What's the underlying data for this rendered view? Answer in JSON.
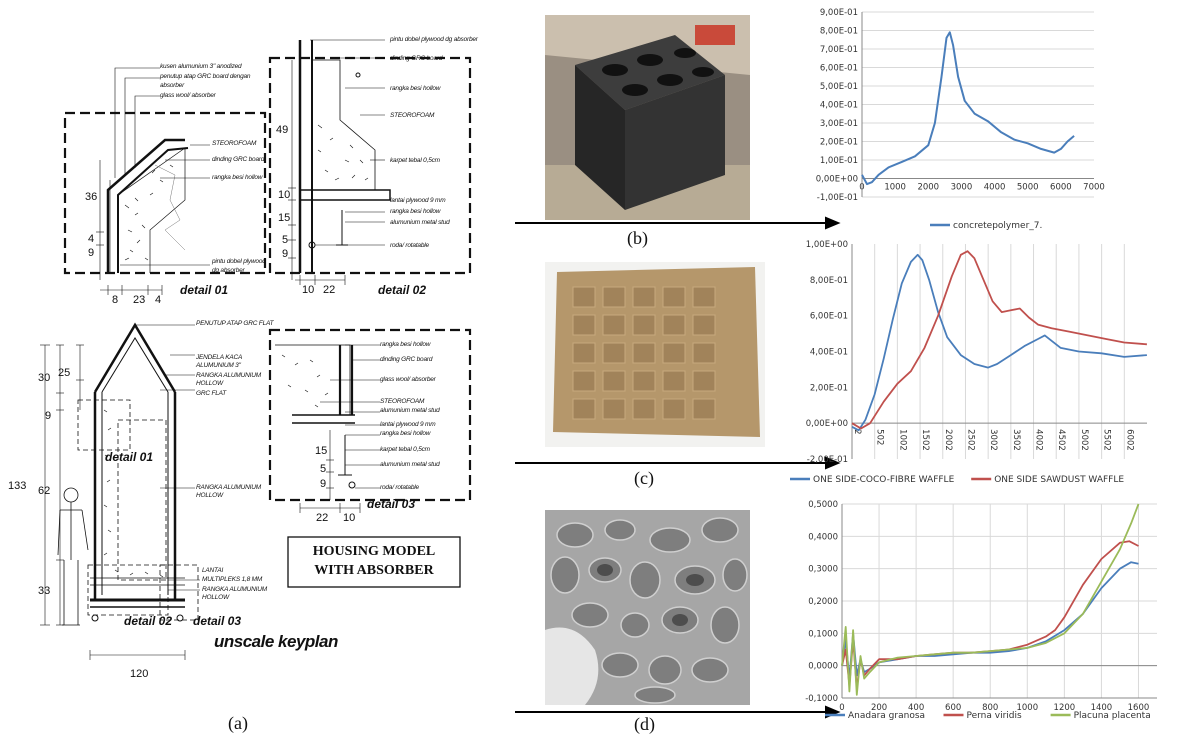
{
  "captions": {
    "a": "(a)",
    "b": "(b)",
    "c": "(c)",
    "d": "(d)"
  },
  "drawing": {
    "box_title": [
      "HOUSING MODEL",
      "WITH ABSORBER"
    ],
    "keyplan": "unscale keyplan",
    "detail_01": "detail 01",
    "detail_02": "detail 02",
    "detail_03": "detail 03",
    "labels_d1": [
      "kusen alumunium 3\" anodized",
      "penutup atap GRC board dengan",
      "absorber",
      "glass wool/ absorber",
      "STEOROFOAM",
      "dinding GRC board",
      "rangka besi hollow",
      "pintu dobel plywood",
      "dg absorber"
    ],
    "dims_d1": [
      "36",
      "4",
      "9",
      "8",
      "23",
      "4"
    ],
    "labels_d2": [
      "pintu dobel plywood dg absorber",
      "dinding GRC board",
      "rangka besi hollow",
      "STEOROFOAM",
      "karpet tebal 0,5cm",
      "lantai plywood 9 mm",
      "rangka besi hollow",
      "alumunium metal stud",
      "roda/ rotatable"
    ],
    "dims_d2": [
      "49",
      "10",
      "15",
      "5",
      "9",
      "10",
      "22"
    ],
    "labels_plan": [
      "PENUTUP ATAP GRC FLAT",
      "JENDELA KACA",
      "ALUMUNIUM 3\"",
      "RANGKA ALUMUNIUM",
      "HOLLOW",
      "GRC FLAT",
      "RANGKA ALUMUNIUM",
      "HOLLOW",
      "LANTAI",
      "MULTIPLEKS 1,8 MM",
      "RANGKA ALUMUNIUM",
      "HOLLOW"
    ],
    "dims_plan": [
      "30",
      "25",
      "9",
      "133",
      "62",
      "33",
      "120"
    ],
    "labels_d3": [
      "rangka besi hollow",
      "dinding GRC board",
      "glass wool/ absorber",
      "STEOROFOAM",
      "alumunium metal stud",
      "lantai plywood 9 mm",
      "rangka besi hollow",
      "karpet tebal 0,5cm",
      "alumunium metal stud",
      "roda/ rotatable"
    ],
    "dims_d3": [
      "15",
      "5",
      "9",
      "22",
      "10"
    ]
  },
  "chart_data": [
    {
      "type": "line",
      "panel": "b",
      "yticks": [
        "9,00E-01",
        "8,00E-01",
        "7,00E-01",
        "6,00E-01",
        "5,00E-01",
        "4,00E-01",
        "3,00E-01",
        "2,00E-01",
        "1,00E-01",
        "0,00E+00",
        "-1,00E-01"
      ],
      "xticks": [
        "0",
        "1000",
        "2000",
        "3000",
        "4000",
        "5000",
        "6000",
        "7000"
      ],
      "ylim": [
        -0.1,
        0.9
      ],
      "xlim": [
        0,
        7000
      ],
      "series": [
        {
          "name": "concretepolymer_7.",
          "color": "#4a7ebb",
          "x": [
            0,
            150,
            300,
            500,
            800,
            1200,
            1600,
            2000,
            2200,
            2400,
            2550,
            2650,
            2750,
            2900,
            3100,
            3400,
            3800,
            4200,
            4600,
            5000,
            5400,
            5800,
            6000,
            6200,
            6400
          ],
          "y": [
            0.02,
            -0.03,
            -0.02,
            0.02,
            0.06,
            0.09,
            0.12,
            0.18,
            0.3,
            0.55,
            0.76,
            0.79,
            0.72,
            0.55,
            0.42,
            0.35,
            0.31,
            0.25,
            0.21,
            0.19,
            0.16,
            0.14,
            0.16,
            0.2,
            0.23
          ]
        }
      ]
    },
    {
      "type": "line",
      "panel": "c",
      "yticks": [
        "1,00E+00",
        "8,00E-01",
        "6,00E-01",
        "4,00E-01",
        "2,00E-01",
        "0,00E+00",
        "-2,00E-01"
      ],
      "xticks": [
        "2",
        "502",
        "1002",
        "1502",
        "2002",
        "2502",
        "3002",
        "3502",
        "4002",
        "4502",
        "5002",
        "5502",
        "6002"
      ],
      "ylim": [
        -0.2,
        1.0
      ],
      "xlim": [
        2,
        6502
      ],
      "series": [
        {
          "name": "ONE SIDE-COCO-FIBRE WAFFLE",
          "color": "#4a7ebb",
          "x": [
            2,
            150,
            300,
            500,
            700,
            900,
            1100,
            1300,
            1450,
            1550,
            1700,
            1900,
            2100,
            2400,
            2700,
            3000,
            3200,
            3500,
            3800,
            4100,
            4250,
            4400,
            4600,
            5000,
            5500,
            6000,
            6500
          ],
          "y": [
            -0.02,
            -0.04,
            0.02,
            0.16,
            0.36,
            0.58,
            0.78,
            0.9,
            0.94,
            0.91,
            0.8,
            0.62,
            0.48,
            0.38,
            0.33,
            0.31,
            0.33,
            0.38,
            0.43,
            0.47,
            0.49,
            0.46,
            0.42,
            0.4,
            0.39,
            0.37,
            0.38
          ]
        },
        {
          "name": "ONE SIDE SAWDUST WAFFLE",
          "color": "#c0504d",
          "x": [
            2,
            200,
            400,
            700,
            1000,
            1300,
            1600,
            1900,
            2200,
            2400,
            2550,
            2700,
            2900,
            3100,
            3300,
            3500,
            3700,
            3900,
            4100,
            4400,
            4800,
            5200,
            5600,
            6000,
            6500
          ],
          "y": [
            0.0,
            -0.03,
            0.0,
            0.12,
            0.22,
            0.29,
            0.42,
            0.6,
            0.82,
            0.94,
            0.96,
            0.92,
            0.8,
            0.68,
            0.62,
            0.63,
            0.64,
            0.59,
            0.55,
            0.53,
            0.51,
            0.49,
            0.47,
            0.45,
            0.44
          ]
        }
      ]
    },
    {
      "type": "line",
      "panel": "d",
      "yticks": [
        "0,5000",
        "0,4000",
        "0,3000",
        "0,2000",
        "0,1000",
        "0,0000",
        "-0,1000"
      ],
      "xticks": [
        "0",
        "200",
        "400",
        "600",
        "800",
        "1000",
        "1200",
        "1400",
        "1600"
      ],
      "ylim": [
        -0.1,
        0.5
      ],
      "xlim": [
        0,
        1700
      ],
      "series": [
        {
          "name": "Anadara granosa",
          "color": "#4a7ebb",
          "x": [
            0,
            20,
            40,
            60,
            80,
            100,
            120,
            150,
            200,
            300,
            400,
            500,
            600,
            700,
            800,
            900,
            1000,
            1100,
            1200,
            1300,
            1400,
            1500,
            1560,
            1600
          ],
          "y": [
            0.0,
            0.08,
            -0.04,
            0.1,
            -0.03,
            0.02,
            -0.02,
            -0.01,
            0.01,
            0.02,
            0.03,
            0.03,
            0.035,
            0.04,
            0.04,
            0.045,
            0.055,
            0.075,
            0.11,
            0.16,
            0.24,
            0.3,
            0.32,
            0.315
          ]
        },
        {
          "name": "Perna viridis",
          "color": "#c0504d",
          "x": [
            0,
            20,
            40,
            60,
            80,
            100,
            120,
            150,
            200,
            300,
            400,
            500,
            600,
            700,
            800,
            900,
            1000,
            1100,
            1150,
            1200,
            1300,
            1400,
            1500,
            1550,
            1600
          ],
          "y": [
            0.0,
            0.05,
            -0.06,
            0.08,
            -0.07,
            0.02,
            -0.03,
            -0.01,
            0.02,
            0.02,
            0.03,
            0.035,
            0.04,
            0.04,
            0.045,
            0.05,
            0.065,
            0.09,
            0.11,
            0.15,
            0.25,
            0.33,
            0.38,
            0.385,
            0.37
          ]
        },
        {
          "name": "Placuna placenta",
          "color": "#9bbb59",
          "x": [
            0,
            20,
            40,
            60,
            80,
            100,
            120,
            150,
            200,
            300,
            400,
            500,
            600,
            700,
            800,
            900,
            1000,
            1100,
            1200,
            1300,
            1400,
            1500,
            1560,
            1600
          ],
          "y": [
            0.0,
            0.12,
            -0.08,
            0.11,
            -0.09,
            0.03,
            -0.04,
            -0.02,
            0.01,
            0.025,
            0.03,
            0.035,
            0.04,
            0.04,
            0.045,
            0.05,
            0.055,
            0.07,
            0.1,
            0.16,
            0.26,
            0.36,
            0.44,
            0.5
          ]
        }
      ]
    }
  ]
}
